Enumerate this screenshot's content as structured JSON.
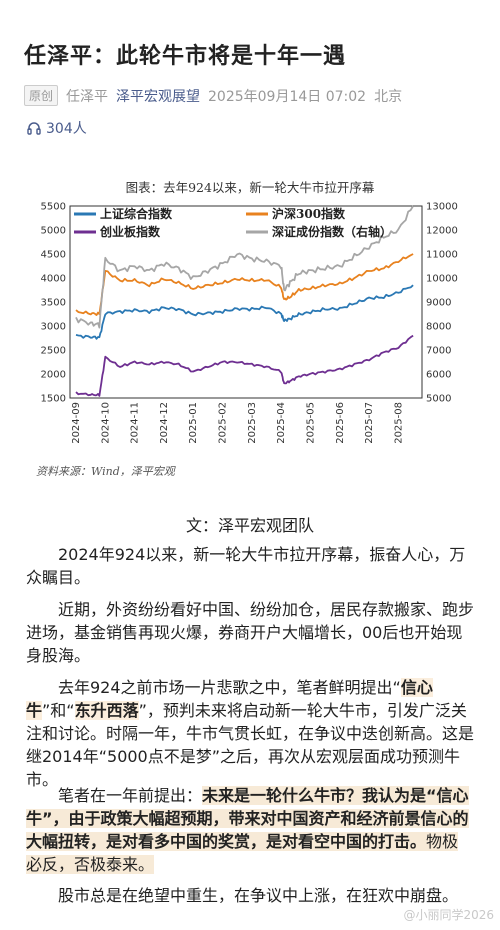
{
  "article": {
    "title": "任泽平：此轮牛市将是十年一遇",
    "badge": "原创",
    "author": "任泽平",
    "account": "泽平宏观展望",
    "datetime": "2025年09月14日 07:02",
    "location": "北京",
    "listeners": "304人"
  },
  "chart_data": {
    "type": "line",
    "title": "图表：去年924以来，新一轮大牛市拉开序幕",
    "source": "资料来源：Wind，泽平宏观",
    "x_labels": [
      "2024-09",
      "2024-10",
      "2024-11",
      "2024-12",
      "2025-01",
      "2025-02",
      "2025-03",
      "2025-04",
      "2025-05",
      "2025-06",
      "2025-07",
      "2025-08"
    ],
    "left_axis": {
      "ticks": [
        "5500",
        "5000",
        "4500",
        "4000",
        "3500",
        "3000",
        "2500",
        "2000",
        "1500"
      ],
      "ylim": [
        1500,
        5500
      ]
    },
    "right_axis": {
      "ticks": [
        "13000",
        "12000",
        "11000",
        "10000",
        "9000",
        "8000",
        "7000",
        "6000",
        "5000"
      ],
      "ylim": [
        5000,
        13000
      ]
    },
    "series": [
      {
        "name": "上证综合指数",
        "axis": "left",
        "color": "#2a78b4",
        "values": [
          [
            0,
            2800
          ],
          [
            0.5,
            2770
          ],
          [
            0.8,
            2760
          ],
          [
            1,
            3260
          ],
          [
            1.5,
            3300
          ],
          [
            2,
            3330
          ],
          [
            2.5,
            3300
          ],
          [
            3,
            3380
          ],
          [
            3.5,
            3350
          ],
          [
            4,
            3240
          ],
          [
            4.5,
            3270
          ],
          [
            5,
            3300
          ],
          [
            5.5,
            3360
          ],
          [
            6,
            3350
          ],
          [
            6.5,
            3390
          ],
          [
            7,
            3250
          ],
          [
            7.1,
            3110
          ],
          [
            7.3,
            3150
          ],
          [
            7.6,
            3240
          ],
          [
            8,
            3290
          ],
          [
            8.5,
            3350
          ],
          [
            9,
            3360
          ],
          [
            9.5,
            3470
          ],
          [
            10,
            3580
          ],
          [
            10.5,
            3600
          ],
          [
            11,
            3700
          ],
          [
            11.5,
            3850
          ]
        ]
      },
      {
        "name": "沪深300指数",
        "axis": "left",
        "color": "#e8821f",
        "values": [
          [
            0,
            3300
          ],
          [
            0.5,
            3260
          ],
          [
            0.8,
            3250
          ],
          [
            1,
            4150
          ],
          [
            1.5,
            3950
          ],
          [
            2,
            3950
          ],
          [
            2.5,
            3850
          ],
          [
            3,
            3980
          ],
          [
            3.5,
            3900
          ],
          [
            4,
            3780
          ],
          [
            4.5,
            3850
          ],
          [
            5,
            3900
          ],
          [
            5.5,
            3980
          ],
          [
            6,
            3950
          ],
          [
            6.5,
            3960
          ],
          [
            7,
            3800
          ],
          [
            7.1,
            3550
          ],
          [
            7.3,
            3600
          ],
          [
            7.6,
            3750
          ],
          [
            8,
            3780
          ],
          [
            8.5,
            3850
          ],
          [
            9,
            3880
          ],
          [
            9.5,
            4000
          ],
          [
            10,
            4150
          ],
          [
            10.5,
            4200
          ],
          [
            11,
            4350
          ],
          [
            11.5,
            4500
          ]
        ]
      },
      {
        "name": "创业板指数",
        "axis": "left",
        "color": "#6e2f91",
        "values": [
          [
            0,
            1600
          ],
          [
            0.5,
            1570
          ],
          [
            0.8,
            1560
          ],
          [
            1,
            2350
          ],
          [
            1.5,
            2150
          ],
          [
            2,
            2250
          ],
          [
            2.5,
            2200
          ],
          [
            3,
            2250
          ],
          [
            3.5,
            2200
          ],
          [
            4,
            2050
          ],
          [
            4.5,
            2150
          ],
          [
            5,
            2250
          ],
          [
            5.5,
            2250
          ],
          [
            6,
            2200
          ],
          [
            6.5,
            2150
          ],
          [
            7,
            2050
          ],
          [
            7.1,
            1800
          ],
          [
            7.3,
            1850
          ],
          [
            7.6,
            1950
          ],
          [
            8,
            2000
          ],
          [
            8.5,
            2050
          ],
          [
            9,
            2100
          ],
          [
            9.5,
            2200
          ],
          [
            10,
            2300
          ],
          [
            10.5,
            2450
          ],
          [
            11,
            2550
          ],
          [
            11.5,
            2800
          ]
        ]
      },
      {
        "name": "深证成份指数（右轴）",
        "axis": "right",
        "color": "#a6a6a6",
        "values": [
          [
            0,
            8300
          ],
          [
            0.5,
            8100
          ],
          [
            0.8,
            8050
          ],
          [
            1,
            10800
          ],
          [
            1.5,
            10300
          ],
          [
            2,
            10500
          ],
          [
            2.5,
            10300
          ],
          [
            3,
            10600
          ],
          [
            3.5,
            10400
          ],
          [
            4,
            10000
          ],
          [
            4.5,
            10300
          ],
          [
            5,
            10600
          ],
          [
            5.5,
            11000
          ],
          [
            6,
            10800
          ],
          [
            6.5,
            10700
          ],
          [
            7,
            10500
          ],
          [
            7.1,
            9500
          ],
          [
            7.3,
            9800
          ],
          [
            7.6,
            10200
          ],
          [
            8,
            10300
          ],
          [
            8.5,
            10400
          ],
          [
            9,
            10500
          ],
          [
            9.5,
            10900
          ],
          [
            10,
            11300
          ],
          [
            10.5,
            11700
          ],
          [
            11,
            12000
          ],
          [
            11.5,
            13000
          ]
        ]
      }
    ]
  },
  "body": {
    "byline": "文：泽平宏观团队",
    "p1": "2024年924以来，新一轮大牛市拉开序幕，振奋人心，万众瞩目。",
    "p2": "近期，外资纷纷看好中国、纷纷加仓，居民存款搬家、跑步进场，基金销售再现火爆，券商开户大幅增长，00后也开始现身股海。",
    "p3a": "去年924之前市场一片悲歌之中，笔者鲜明提出“",
    "p3b": "信心牛",
    "p3c": "”和“",
    "p3d": "东升西落",
    "p3e": "”，预判未来将启动新一轮大牛市，引发广泛关注和讨论。时隔一年，牛市气贯长虹，在争议中迭创新高。这是继2014年“5000点不是梦”之后，再次从宏观层面成功预测牛市。",
    "p4a": "笔者在一年前提出：",
    "p4b": "未来是一轮什么牛市？我认为是“信心牛”，由于政策大幅超预期，带来对中国资产和经济前景信心的大幅扭转，是对看多中国的奖赏，是对看空中国的打击。",
    "p4c": "物极必反，否极泰来。",
    "p5": "股市总是在绝望中重生，在争议中上涨，在狂欢中崩盘。"
  },
  "watermark": "@小丽同学2026"
}
